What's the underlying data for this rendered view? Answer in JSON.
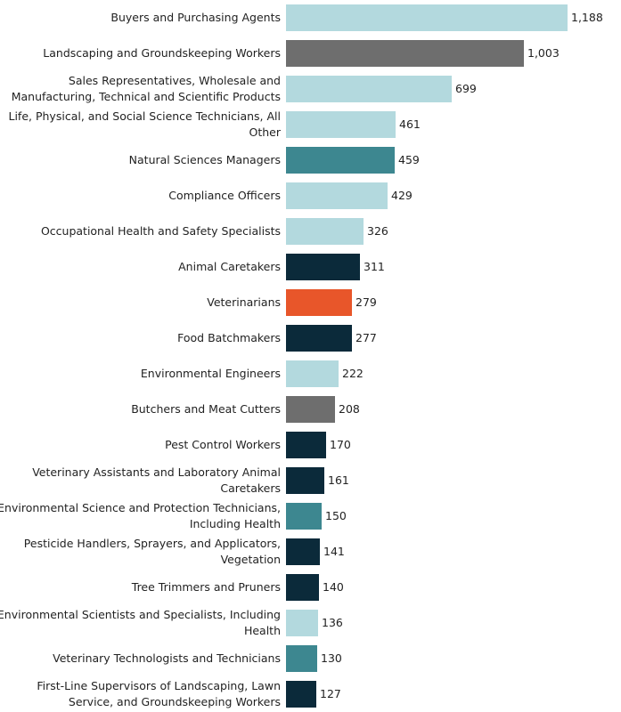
{
  "chart_data": {
    "type": "bar",
    "orientation": "horizontal",
    "title": "",
    "xlabel": "",
    "ylabel": "",
    "categories": [
      "Buyers and Purchasing Agents",
      "Landscaping and Groundskeeping Workers",
      "Sales Representatives, Wholesale and Manufacturing, Technical and Scientific Products",
      "Life, Physical, and Social Science Technicians, All Other",
      "Natural Sciences Managers",
      "Compliance Officers",
      "Occupational Health and Safety Specialists",
      "Animal Caretakers",
      "Veterinarians",
      "Food Batchmakers",
      "Environmental Engineers",
      "Butchers and Meat Cutters",
      "Pest Control Workers",
      "Veterinary Assistants and Laboratory Animal Caretakers",
      "Environmental Science and Protection Technicians, Including Health",
      "Pesticide Handlers, Sprayers, and Applicators, Vegetation",
      "Tree Trimmers and Pruners",
      "Environmental Scientists and Specialists, Including Health",
      "Veterinary Technologists and Technicians",
      "First-Line Supervisors of Landscaping, Lawn Service, and Groundskeeping Workers"
    ],
    "label_lines": [
      [
        "Buyers and Purchasing Agents"
      ],
      [
        "Landscaping and Groundskeeping Workers"
      ],
      [
        "Sales Representatives, Wholesale and",
        "Manufacturing, Technical and Scientific Products"
      ],
      [
        "Life, Physical, and Social Science Technicians, All",
        "Other"
      ],
      [
        "Natural Sciences Managers"
      ],
      [
        "Compliance Officers"
      ],
      [
        "Occupational Health and Safety Specialists"
      ],
      [
        "Animal Caretakers"
      ],
      [
        "Veterinarians"
      ],
      [
        "Food Batchmakers"
      ],
      [
        "Environmental Engineers"
      ],
      [
        "Butchers and Meat Cutters"
      ],
      [
        "Pest Control Workers"
      ],
      [
        "Veterinary Assistants and Laboratory Animal",
        "Caretakers"
      ],
      [
        "Environmental Science and Protection Technicians,",
        "Including Health"
      ],
      [
        "Pesticide Handlers, Sprayers, and Applicators,",
        "Vegetation"
      ],
      [
        "Tree Trimmers and Pruners"
      ],
      [
        "Environmental Scientists and Specialists, Including",
        "Health"
      ],
      [
        "Veterinary Technologists and Technicians"
      ],
      [
        "First-Line Supervisors of Landscaping, Lawn",
        "Service, and Groundskeeping Workers"
      ]
    ],
    "values": [
      1188,
      1003,
      699,
      461,
      459,
      429,
      326,
      311,
      279,
      277,
      222,
      208,
      170,
      161,
      150,
      141,
      140,
      136,
      130,
      127
    ],
    "value_labels": [
      "1,188",
      "1,003",
      "699",
      "461",
      "459",
      "429",
      "326",
      "311",
      "279",
      "277",
      "222",
      "208",
      "170",
      "161",
      "150",
      "141",
      "140",
      "136",
      "130",
      "127"
    ],
    "colors": [
      "#b3d9de",
      "#6e6e6e",
      "#b3d9de",
      "#b3d9de",
      "#3d8790",
      "#b3d9de",
      "#b3d9de",
      "#0b2a3a",
      "#e8562a",
      "#0b2a3a",
      "#b3d9de",
      "#6e6e6e",
      "#0b2a3a",
      "#0b2a3a",
      "#3d8790",
      "#0b2a3a",
      "#0b2a3a",
      "#b3d9de",
      "#3d8790",
      "#0b2a3a"
    ],
    "xlim": [
      0,
      1188
    ],
    "grid": false,
    "legend": "none"
  }
}
